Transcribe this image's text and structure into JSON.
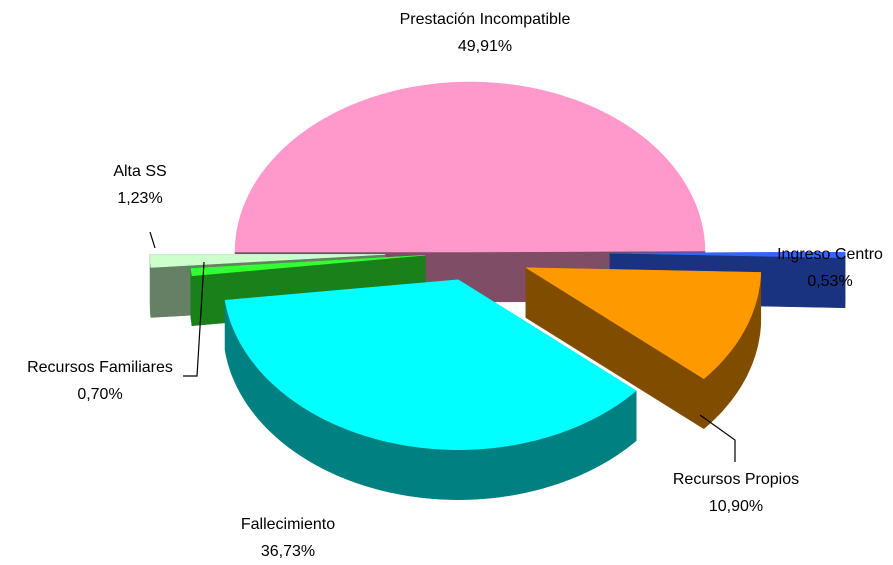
{
  "chart_data": {
    "type": "pie",
    "categories": [
      "Prestación Incompatible",
      "Ingreso Centro",
      "Recursos Propios",
      "Fallecimiento",
      "Recursos Familiares",
      "Alta SS"
    ],
    "values": [
      49.91,
      0.53,
      10.9,
      36.73,
      0.7,
      1.23
    ],
    "value_labels": [
      "49,91%",
      "0,53%",
      "10,90%",
      "36,73%",
      "0,70%",
      "1,23%"
    ],
    "colors": [
      "#ff99cc",
      "#3366ff",
      "#ff9900",
      "#00ffff",
      "#33ff33",
      "#ccffcc"
    ]
  }
}
